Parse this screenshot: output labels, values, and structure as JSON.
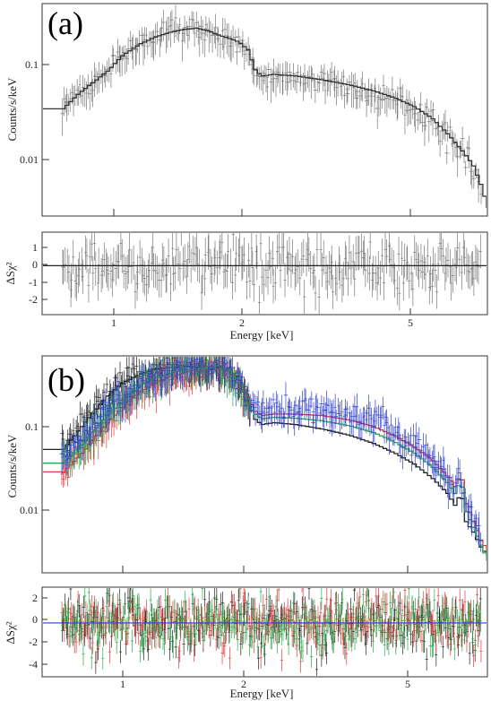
{
  "chart_data": [
    {
      "panel": "(a)",
      "type": "line",
      "xlabel": "Energy [keV]",
      "ylabel": "Counts/s/keV",
      "xscale": "log",
      "yscale": "log",
      "xlim": [
        0.65,
        7.5
      ],
      "ylim": [
        0.0025,
        0.55
      ],
      "x_ticks": [
        "1",
        "2",
        "5"
      ],
      "y_ticks": [
        "0.01",
        "0.1"
      ],
      "residual": {
        "ylabel": "ΔSχ²",
        "ylim": [
          -2.8,
          1.9
        ],
        "y_ticks": [
          "1",
          "0",
          "-1",
          "-2"
        ],
        "spread": 0.9
      },
      "series": [
        {
          "color": "#333333",
          "model": [
            [
              0.65,
              0.038
            ],
            [
              0.72,
              0.038
            ],
            [
              0.78,
              0.055
            ],
            [
              0.85,
              0.075
            ],
            [
              0.92,
              0.1
            ],
            [
              1.0,
              0.15
            ],
            [
              1.1,
              0.2
            ],
            [
              1.2,
              0.24
            ],
            [
              1.3,
              0.27
            ],
            [
              1.4,
              0.29
            ],
            [
              1.5,
              0.3
            ],
            [
              1.6,
              0.28
            ],
            [
              1.7,
              0.25
            ],
            [
              1.8,
              0.23
            ],
            [
              1.9,
              0.21
            ],
            [
              2.0,
              0.17
            ],
            [
              2.07,
              0.105
            ],
            [
              2.15,
              0.088
            ],
            [
              2.3,
              0.092
            ],
            [
              2.6,
              0.088
            ],
            [
              3.0,
              0.08
            ],
            [
              3.5,
              0.07
            ],
            [
              4.0,
              0.06
            ],
            [
              4.5,
              0.05
            ],
            [
              5.0,
              0.04
            ],
            [
              5.5,
              0.03
            ],
            [
              6.0,
              0.02
            ],
            [
              6.5,
              0.013
            ],
            [
              6.9,
              0.009
            ],
            [
              7.2,
              0.0055
            ],
            [
              7.5,
              0.003
            ]
          ]
        }
      ]
    },
    {
      "panel": "(b)",
      "type": "line",
      "xlabel": "Energy [keV]",
      "ylabel": "Counts/s/keV",
      "xscale": "log",
      "yscale": "log",
      "xlim": [
        0.65,
        7.5
      ],
      "ylim": [
        0.0021,
        0.55
      ],
      "x_ticks": [
        "1",
        "2",
        "5"
      ],
      "y_ticks": [
        "0.01",
        "0.1"
      ],
      "residual": {
        "ylabel": "ΔSχ²",
        "ylim": [
          -4.7,
          3.1
        ],
        "y_ticks": [
          "2",
          "0",
          "-2",
          "-4"
        ],
        "spread": 1.6
      },
      "series": [
        {
          "color": "#222222",
          "model": [
            [
              0.65,
              0.05
            ],
            [
              0.72,
              0.05
            ],
            [
              0.78,
              0.08
            ],
            [
              0.85,
              0.13
            ],
            [
              0.92,
              0.2
            ],
            [
              1.0,
              0.28
            ],
            [
              1.1,
              0.35
            ],
            [
              1.2,
              0.4
            ],
            [
              1.3,
              0.42
            ],
            [
              1.4,
              0.43
            ],
            [
              1.5,
              0.42
            ],
            [
              1.6,
              0.41
            ],
            [
              1.7,
              0.42
            ],
            [
              1.8,
              0.4
            ],
            [
              1.9,
              0.3
            ],
            [
              2.0,
              0.17
            ],
            [
              2.07,
              0.11
            ],
            [
              2.15,
              0.095
            ],
            [
              2.3,
              0.1
            ],
            [
              2.6,
              0.095
            ],
            [
              3.0,
              0.085
            ],
            [
              3.5,
              0.072
            ],
            [
              4.0,
              0.058
            ],
            [
              4.5,
              0.045
            ],
            [
              5.0,
              0.034
            ],
            [
              5.5,
              0.024
            ],
            [
              6.0,
              0.016
            ],
            [
              6.3,
              0.011
            ],
            [
              6.45,
              0.019
            ],
            [
              6.6,
              0.008
            ],
            [
              6.9,
              0.006
            ],
            [
              7.2,
              0.004
            ],
            [
              7.5,
              0.0032
            ]
          ]
        },
        {
          "color": "#e03a3a",
          "model": [
            [
              0.65,
              0.028
            ],
            [
              0.72,
              0.028
            ],
            [
              0.78,
              0.04
            ],
            [
              0.85,
              0.065
            ],
            [
              0.92,
              0.1
            ],
            [
              1.0,
              0.15
            ],
            [
              1.1,
              0.22
            ],
            [
              1.2,
              0.28
            ],
            [
              1.3,
              0.33
            ],
            [
              1.4,
              0.36
            ],
            [
              1.5,
              0.4
            ],
            [
              1.6,
              0.4
            ],
            [
              1.7,
              0.4
            ],
            [
              1.8,
              0.38
            ],
            [
              1.9,
              0.3
            ],
            [
              2.0,
              0.19
            ],
            [
              2.07,
              0.135
            ],
            [
              2.15,
              0.12
            ],
            [
              2.3,
              0.125
            ],
            [
              2.6,
              0.125
            ],
            [
              3.0,
              0.12
            ],
            [
              3.5,
              0.107
            ],
            [
              4.0,
              0.09
            ],
            [
              4.5,
              0.07
            ],
            [
              5.0,
              0.053
            ],
            [
              5.5,
              0.038
            ],
            [
              6.0,
              0.025
            ],
            [
              6.3,
              0.018
            ],
            [
              6.45,
              0.031
            ],
            [
              6.6,
              0.013
            ],
            [
              6.9,
              0.008
            ],
            [
              7.2,
              0.0048
            ],
            [
              7.5,
              0.0036
            ]
          ]
        },
        {
          "color": "#2aa84a",
          "model": [
            [
              0.65,
              0.035
            ],
            [
              0.72,
              0.035
            ],
            [
              0.78,
              0.05
            ],
            [
              0.85,
              0.08
            ],
            [
              0.92,
              0.12
            ],
            [
              1.0,
              0.18
            ],
            [
              1.1,
              0.26
            ],
            [
              1.2,
              0.32
            ],
            [
              1.3,
              0.36
            ],
            [
              1.4,
              0.39
            ],
            [
              1.5,
              0.41
            ],
            [
              1.6,
              0.41
            ],
            [
              1.7,
              0.41
            ],
            [
              1.8,
              0.39
            ],
            [
              1.9,
              0.3
            ],
            [
              2.0,
              0.18
            ],
            [
              2.07,
              0.125
            ],
            [
              2.15,
              0.11
            ],
            [
              2.3,
              0.115
            ],
            [
              2.6,
              0.112
            ],
            [
              3.0,
              0.105
            ],
            [
              3.5,
              0.092
            ],
            [
              4.0,
              0.077
            ],
            [
              4.5,
              0.06
            ],
            [
              5.0,
              0.045
            ],
            [
              5.5,
              0.032
            ],
            [
              6.0,
              0.021
            ],
            [
              6.3,
              0.015
            ],
            [
              6.45,
              0.026
            ],
            [
              6.6,
              0.0105
            ],
            [
              6.9,
              0.0068
            ],
            [
              7.2,
              0.0042
            ],
            [
              7.5,
              0.0028
            ]
          ]
        },
        {
          "color": "#2f3fd0",
          "data_only": true,
          "model": [
            [
              0.65,
              0.04
            ],
            [
              0.72,
              0.04
            ],
            [
              0.78,
              0.06
            ],
            [
              0.85,
              0.09
            ],
            [
              0.92,
              0.14
            ],
            [
              1.0,
              0.2
            ],
            [
              1.1,
              0.28
            ],
            [
              1.2,
              0.34
            ],
            [
              1.3,
              0.38
            ],
            [
              1.4,
              0.41
            ],
            [
              1.5,
              0.44
            ],
            [
              1.6,
              0.43
            ],
            [
              1.7,
              0.43
            ],
            [
              1.8,
              0.41
            ],
            [
              1.9,
              0.32
            ],
            [
              2.0,
              0.2
            ],
            [
              2.07,
              0.15
            ],
            [
              2.15,
              0.14
            ],
            [
              2.3,
              0.145
            ],
            [
              2.6,
              0.145
            ],
            [
              3.0,
              0.14
            ],
            [
              3.5,
              0.125
            ],
            [
              4.0,
              0.105
            ],
            [
              4.5,
              0.08
            ],
            [
              5.0,
              0.06
            ],
            [
              5.5,
              0.042
            ],
            [
              6.0,
              0.028
            ],
            [
              6.3,
              0.02
            ],
            [
              6.45,
              0.034
            ],
            [
              6.6,
              0.014
            ],
            [
              6.9,
              0.009
            ],
            [
              7.2,
              0.0052
            ],
            [
              7.5,
              0.0038
            ]
          ]
        }
      ]
    }
  ]
}
